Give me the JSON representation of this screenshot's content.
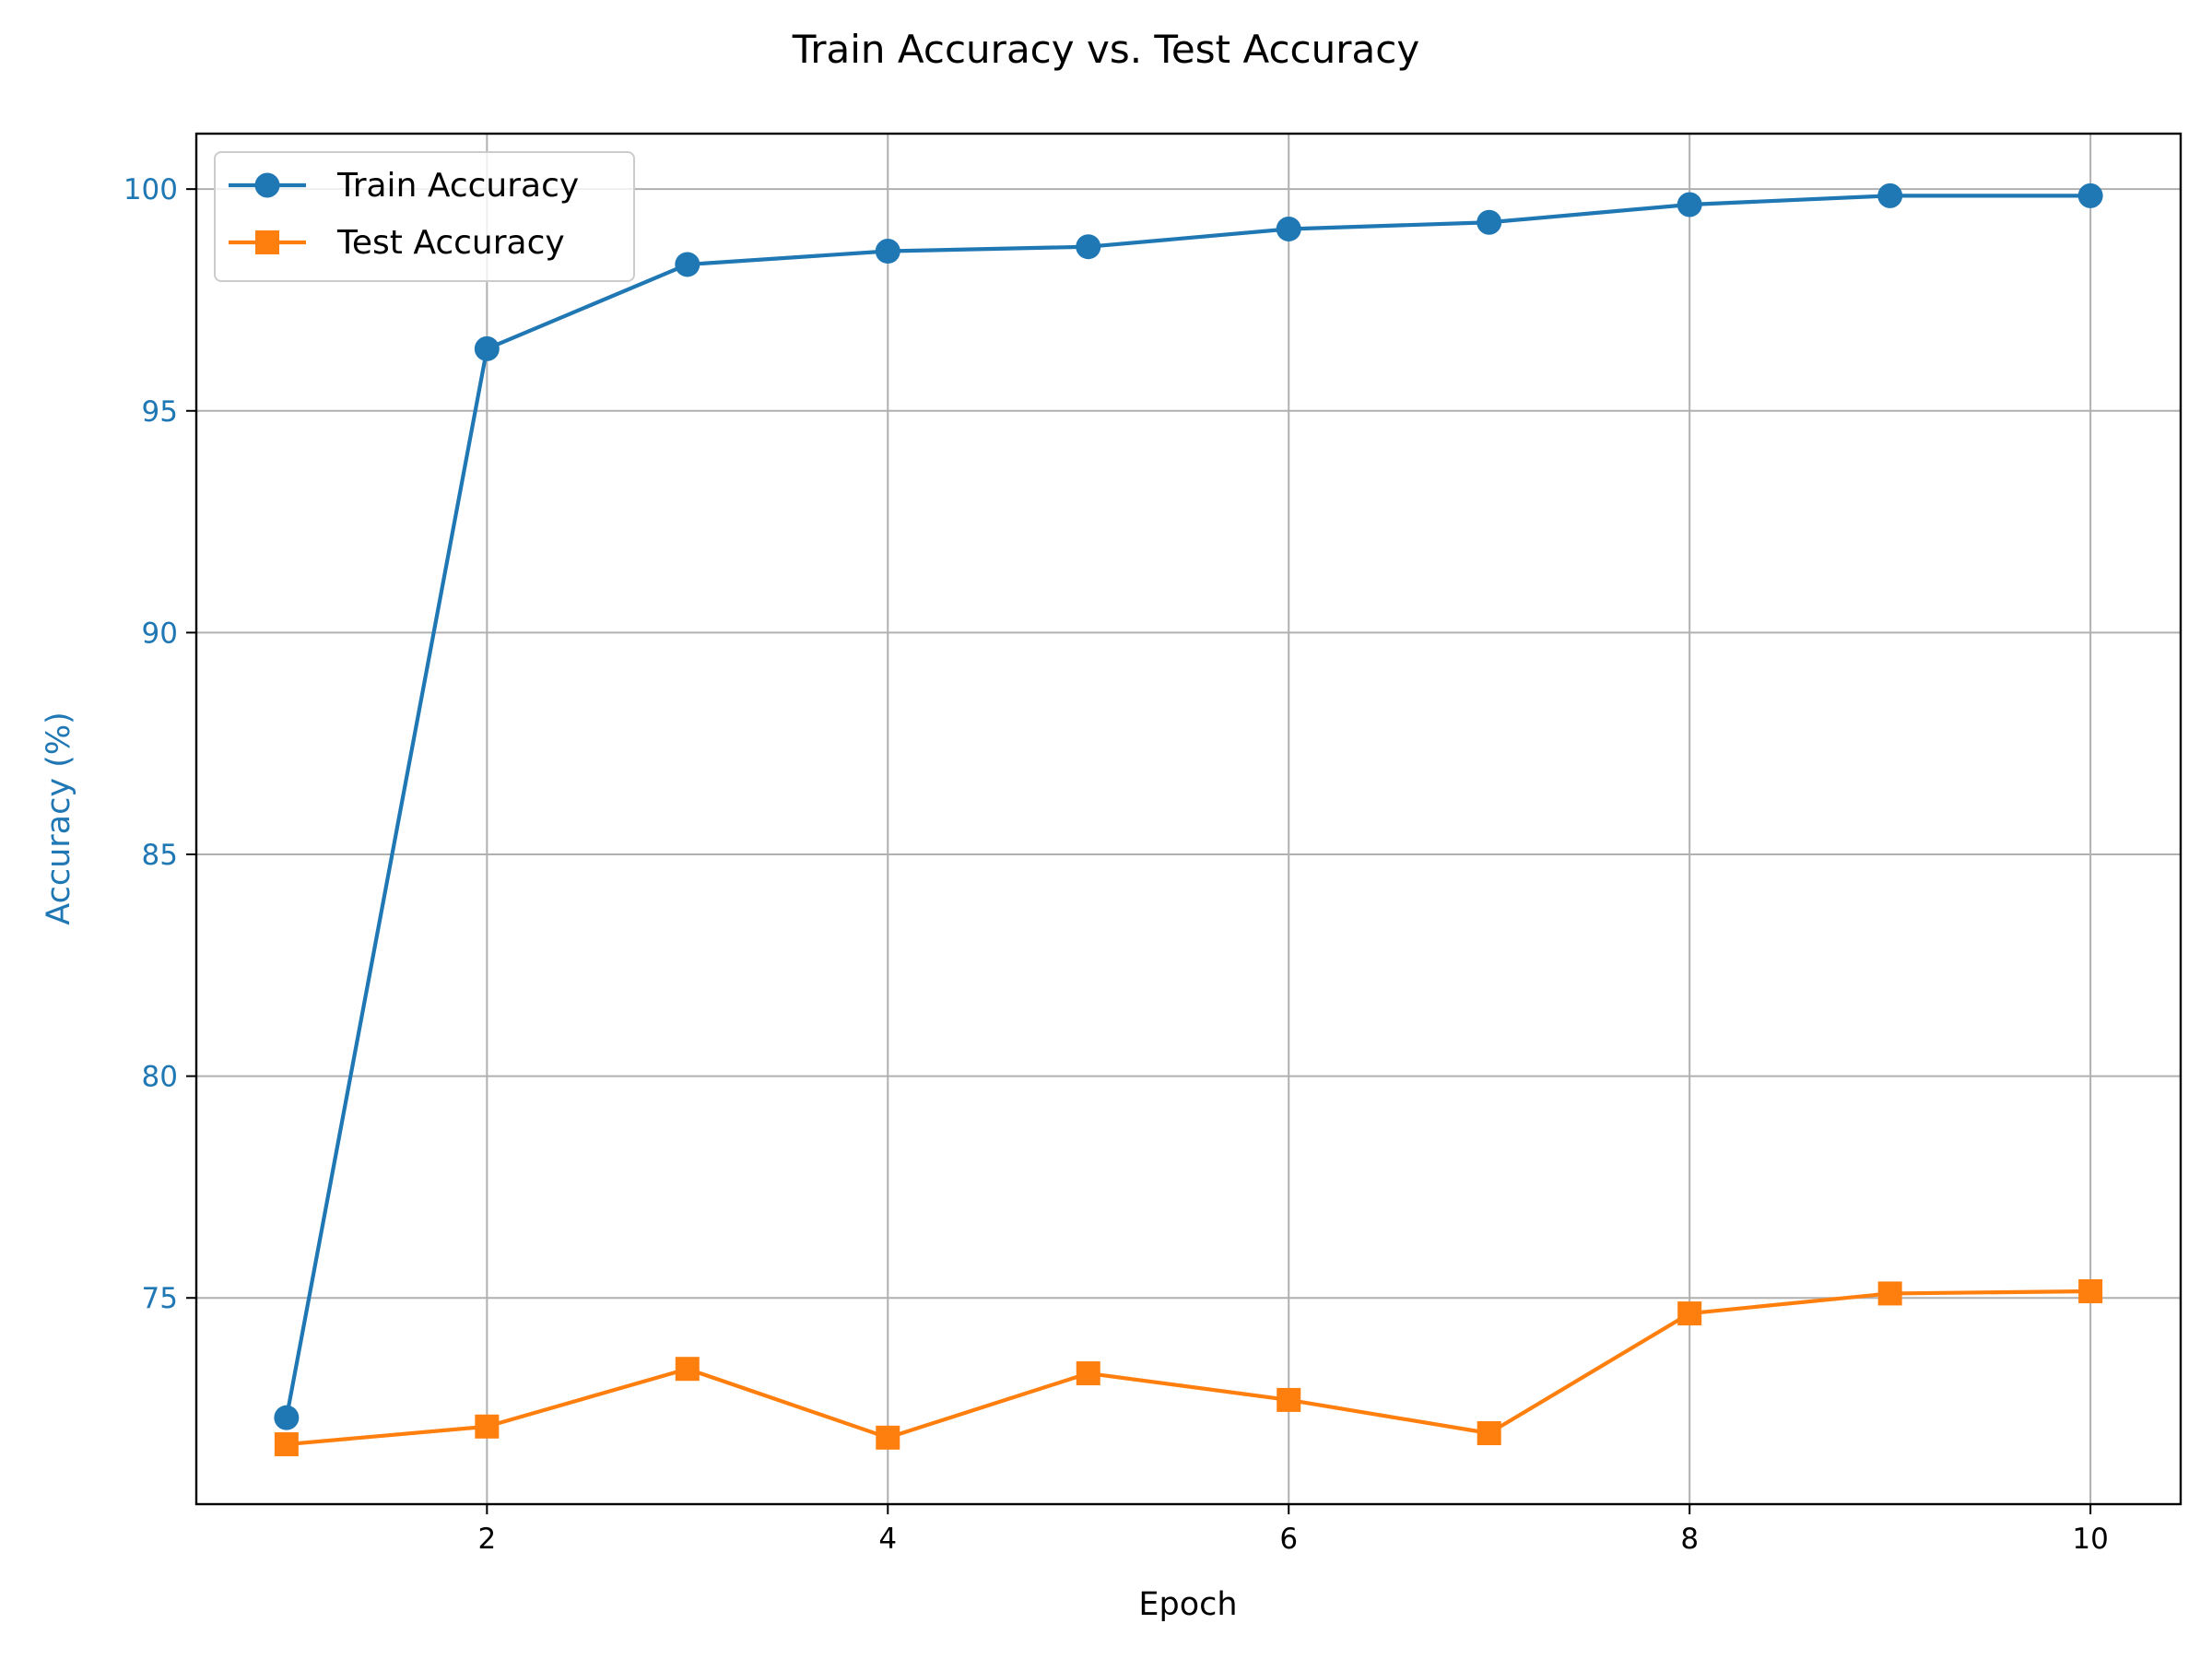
{
  "chart_data": {
    "type": "line",
    "title": "Train Accuracy vs. Test Accuracy",
    "xlabel": "Epoch",
    "ylabel": "Accuracy (%)",
    "x": [
      1,
      2,
      3,
      4,
      5,
      6,
      7,
      8,
      9,
      10
    ],
    "xlim": [
      0.55,
      10.45
    ],
    "ylim": [
      70.35,
      101.25
    ],
    "xticks": [
      2,
      4,
      6,
      8,
      10
    ],
    "yticks": [
      75,
      80,
      85,
      90,
      95,
      100
    ],
    "grid": true,
    "legend_position": "top-left",
    "series": [
      {
        "name": "Train Accuracy",
        "color": "#1f77b4",
        "marker": "circle",
        "values": [
          72.3,
          96.4,
          98.3,
          98.6,
          98.7,
          99.1,
          99.25,
          99.65,
          99.85,
          99.85
        ]
      },
      {
        "name": "Test Accuracy",
        "color": "#ff7f0e",
        "marker": "square",
        "values": [
          71.7,
          72.1,
          73.4,
          71.85,
          73.3,
          72.7,
          71.95,
          74.65,
          75.1,
          75.15
        ]
      }
    ],
    "ytick_color": "#1f77b4",
    "ylabel_color": "#1f77b4"
  }
}
